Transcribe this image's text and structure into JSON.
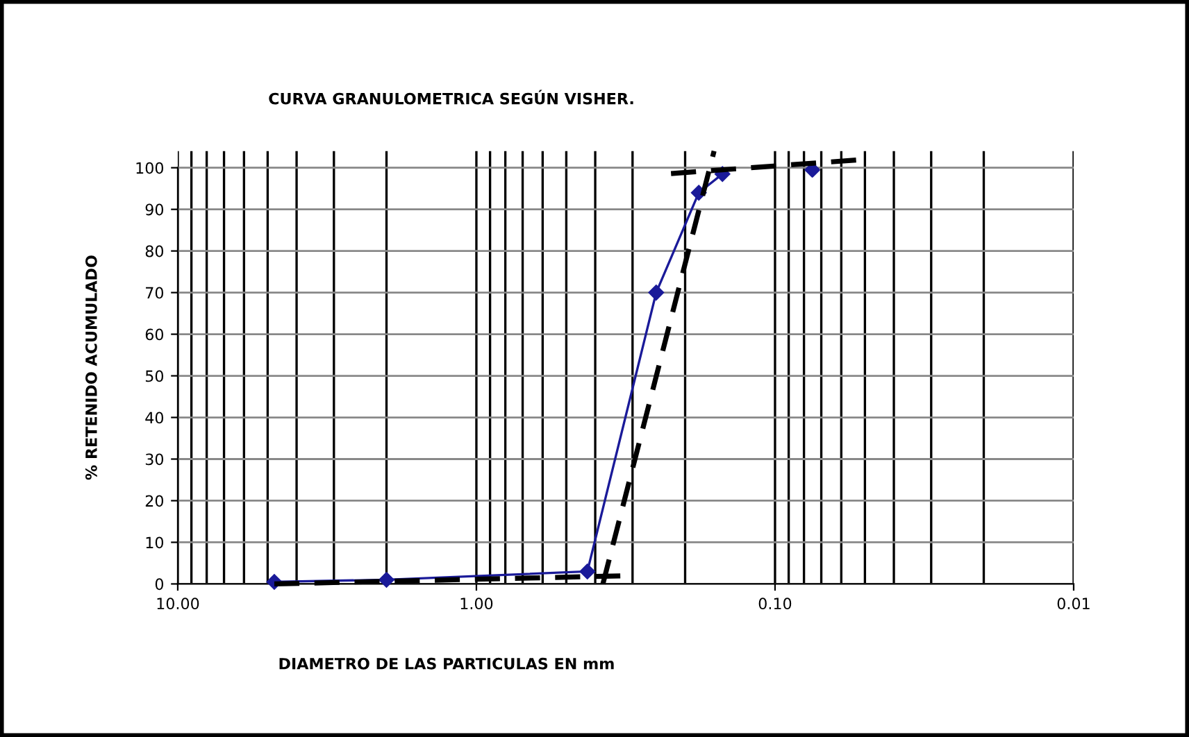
{
  "chart_data": {
    "type": "line",
    "title": "CURVA GRANULOMETRICA SEGÚN VISHER.",
    "xlabel": "DIAMETRO DE LAS PARTICULAS EN mm",
    "ylabel": "% RETENIDO ACUMULADO",
    "log": "x",
    "xlim": [
      10,
      0.01
    ],
    "xticks": [
      {
        "value": 10,
        "label": "10.00"
      },
      {
        "value": 1,
        "label": "1.00"
      },
      {
        "value": 0.1,
        "label": "0.10"
      },
      {
        "value": 0.01,
        "label": "0.01"
      }
    ],
    "ylim": [
      0,
      104
    ],
    "yticks": [
      0,
      10,
      20,
      30,
      40,
      50,
      60,
      70,
      80,
      90,
      100
    ],
    "grid": true,
    "legend": false,
    "series": [
      {
        "color": "#1a1a99",
        "marker": "diamond",
        "line_style": "solid",
        "x": [
          4.75,
          2.0,
          0.425,
          0.25,
          0.18,
          0.15
        ],
        "values": [
          0.5,
          1,
          3,
          70,
          94,
          98.5
        ]
      },
      {
        "type": "scatter",
        "color": "#1a1a99",
        "marker": "diamond",
        "x": [
          0.075
        ],
        "values": [
          99.5
        ]
      },
      {
        "color": "#000000",
        "marker": "none",
        "line_style": "dashed",
        "x": [
          4.75,
          0.3
        ],
        "values": [
          0,
          2
        ]
      },
      {
        "color": "#000000",
        "marker": "none",
        "line_style": "dashed",
        "x": [
          0.377,
          0.16
        ],
        "values": [
          0,
          104
        ]
      },
      {
        "color": "#000000",
        "marker": "none",
        "line_style": "dashed",
        "x": [
          0.223,
          0.05
        ],
        "values": [
          98.6,
          102
        ]
      }
    ]
  }
}
